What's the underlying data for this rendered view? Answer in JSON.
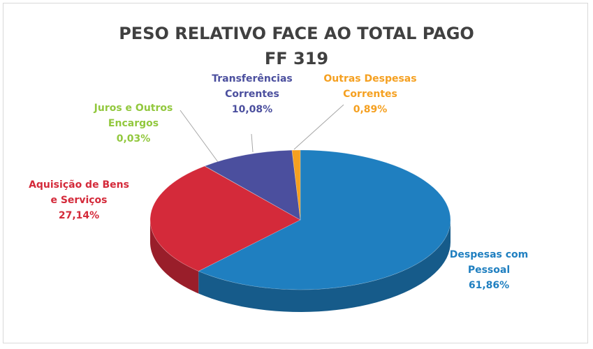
{
  "chart_data": {
    "type": "pie3d",
    "title": "PESO RELATIVO FACE AO TOTAL PAGO",
    "subtitle": "FF 319",
    "categories": [
      "Despesas com Pessoal",
      "Aquisição de Bens e Serviços",
      "Juros e Outros Encargos",
      "Transferências Correntes",
      "Outras Despesas Correntes"
    ],
    "values": [
      61.86,
      27.14,
      0.03,
      10.08,
      0.89
    ],
    "value_labels": [
      "61,86%",
      "27,14%",
      "0,03%",
      "10,08%",
      "0,89%"
    ],
    "colors": [
      "#1f7fc0",
      "#d42a3a",
      "#92c83e",
      "#4b4f9e",
      "#f5a020"
    ]
  }
}
